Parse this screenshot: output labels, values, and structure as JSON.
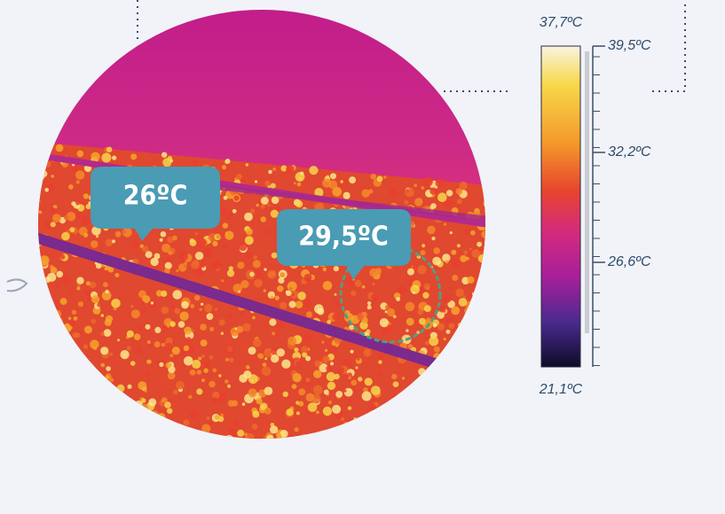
{
  "thermal_image": {
    "callouts": [
      "26ºC",
      "29,5ºC"
    ]
  },
  "color_scale": {
    "top_label": "37,7ºC",
    "bottom_label": "21,1ºC",
    "ticks": [
      "39,5ºC",
      "32,2ºC",
      "26,6ºC"
    ]
  }
}
